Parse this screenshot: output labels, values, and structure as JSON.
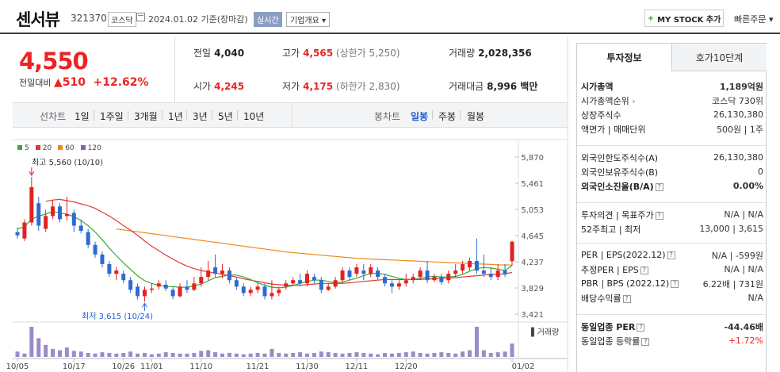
{
  "header": {
    "name": "센서뷰",
    "code": "321370",
    "market": "코스닥",
    "date": "2024.01.02 기준(장마감)",
    "realtime": "실시간",
    "corp_info": "기업개요",
    "mystock": "MY STOCK 추가",
    "quick_order": "빠른주문"
  },
  "summary": {
    "price": "4,550",
    "change_label": "전일대비",
    "change_value": "510",
    "change_pct": "+12.62%",
    "prev_label": "전일",
    "prev": "4,040",
    "open_label": "시가",
    "open": "4,245",
    "high_label": "고가",
    "high": "4,565",
    "upper_limit": "(상한가 5,250)",
    "low_label": "저가",
    "low": "4,175",
    "lower_limit": "(하한가 2,830)",
    "volume_label": "거래량",
    "volume": "2,028,356",
    "amount_label": "거래대금",
    "amount": "8,996 백만"
  },
  "period_tabs": {
    "line_label": "선차트",
    "line_items": [
      "1일",
      "1주일",
      "3개월",
      "1년",
      "3년",
      "5년",
      "10년"
    ],
    "candle_label": "봉차트",
    "candle_items": [
      "일봉",
      "주봉",
      "월봉"
    ],
    "selected": "일봉"
  },
  "chart_data": {
    "type": "candlestick",
    "legend": [
      "5",
      "20",
      "60",
      "120"
    ],
    "colors": {
      "ma5": "#3aaa35",
      "ma20": "#e03a3a",
      "ma60": "#ee8a1f",
      "ma120": "#8e5bc2",
      "up": "#e22222",
      "down": "#2d6bd1",
      "volume": "#9a8bc9"
    },
    "y_ticks": [
      "5,870",
      "5,461",
      "5,053",
      "4,645",
      "4,237",
      "3,829",
      "3,421"
    ],
    "ylim": [
      3421,
      5870
    ],
    "x_ticks": [
      "10/05",
      "10/17",
      "10/26",
      "11/01",
      "11/10",
      "11/21",
      "11/30",
      "12/11",
      "12/20",
      "01/02"
    ],
    "max_annotation": "최고 5,560 (10/10)",
    "min_annotation": "최저 3,615 (10/24)",
    "volume_label": "거래량",
    "candles": [
      [
        4700,
        4650,
        4770,
        4600
      ],
      [
        4600,
        4850,
        4900,
        4560
      ],
      [
        4850,
        5400,
        5560,
        4800
      ],
      [
        5150,
        4800,
        5250,
        4720
      ],
      [
        4750,
        4950,
        5050,
        4700
      ],
      [
        4950,
        5100,
        5200,
        4900
      ],
      [
        5100,
        4900,
        5150,
        4850
      ],
      [
        4950,
        4980,
        5250,
        4880
      ],
      [
        5000,
        4800,
        5050,
        4700
      ],
      [
        4800,
        4720,
        4900,
        4680
      ],
      [
        4700,
        4500,
        4750,
        4450
      ],
      [
        4500,
        4350,
        4550,
        4300
      ],
      [
        4350,
        4200,
        4400,
        4150
      ],
      [
        4200,
        4050,
        4250,
        4000
      ],
      [
        4050,
        4100,
        4150,
        3950
      ],
      [
        4050,
        3950,
        4100,
        3900
      ],
      [
        3950,
        3800,
        4000,
        3750
      ],
      [
        3850,
        3700,
        3900,
        3650
      ],
      [
        3700,
        3800,
        3850,
        3615
      ],
      [
        3800,
        3820,
        3900,
        3750
      ],
      [
        3850,
        3900,
        3950,
        3800
      ],
      [
        3880,
        3820,
        3950,
        3780
      ],
      [
        3800,
        3700,
        3850,
        3650
      ],
      [
        3700,
        3850,
        3900,
        3680
      ],
      [
        3850,
        3800,
        3950,
        3750
      ],
      [
        3800,
        3900,
        4000,
        3780
      ],
      [
        3900,
        4000,
        4150,
        3850
      ],
      [
        4000,
        4100,
        4250,
        3950
      ],
      [
        4150,
        4050,
        4350,
        4000
      ],
      [
        4050,
        4100,
        4200,
        3980
      ],
      [
        4100,
        3950,
        4150,
        3900
      ],
      [
        3950,
        3850,
        4000,
        3800
      ],
      [
        3850,
        3750,
        3900,
        3700
      ],
      [
        3750,
        3800,
        3850,
        3700
      ],
      [
        3800,
        3850,
        3900,
        3750
      ],
      [
        3850,
        3700,
        3900,
        3650
      ],
      [
        3700,
        3750,
        3950,
        3650
      ],
      [
        3750,
        3800,
        3850,
        3700
      ],
      [
        3850,
        3900,
        3950,
        3800
      ],
      [
        3900,
        3950,
        4000,
        3850
      ],
      [
        3950,
        3900,
        4050,
        3850
      ],
      [
        3900,
        4050,
        4100,
        3850
      ],
      [
        4000,
        3950,
        4050,
        3900
      ],
      [
        3950,
        3800,
        4000,
        3750
      ],
      [
        3800,
        3850,
        3900,
        3780
      ],
      [
        3850,
        3950,
        4000,
        3820
      ],
      [
        3950,
        4100,
        4150,
        3900
      ],
      [
        4100,
        4000,
        4150,
        3950
      ],
      [
        4050,
        4150,
        4200,
        4000
      ],
      [
        4100,
        4050,
        4200,
        3950
      ],
      [
        4050,
        4150,
        4200,
        4000
      ],
      [
        4100,
        4000,
        4150,
        3950
      ],
      [
        4000,
        3900,
        4050,
        3850
      ],
      [
        3900,
        3850,
        3950,
        3750
      ],
      [
        3850,
        3900,
        3950,
        3800
      ],
      [
        3900,
        3950,
        4050,
        3850
      ],
      [
        3950,
        4000,
        4050,
        3900
      ],
      [
        4000,
        4100,
        4150,
        3950
      ],
      [
        4100,
        3950,
        4250,
        3900
      ],
      [
        3950,
        4000,
        4050,
        3920
      ],
      [
        4000,
        3920,
        4050,
        3880
      ],
      [
        3950,
        4050,
        4100,
        3900
      ],
      [
        4050,
        4100,
        4200,
        4000
      ],
      [
        4100,
        4200,
        4250,
        4050
      ],
      [
        4150,
        4250,
        4300,
        4100
      ],
      [
        4250,
        4100,
        4600,
        4050
      ],
      [
        4100,
        4050,
        4350,
        4000
      ],
      [
        4050,
        4000,
        4150,
        3950
      ],
      [
        4000,
        4100,
        4200,
        3950
      ],
      [
        4100,
        4040,
        4200,
        4000
      ],
      [
        4245,
        4550,
        4565,
        4175
      ]
    ],
    "volumes": [
      8,
      5,
      45,
      28,
      18,
      12,
      10,
      14,
      9,
      8,
      6,
      5,
      7,
      6,
      5,
      6,
      8,
      5,
      6,
      4,
      5,
      7,
      6,
      5,
      5,
      6,
      9,
      10,
      7,
      5,
      6,
      5,
      4,
      5,
      6,
      5,
      12,
      6,
      5,
      6,
      7,
      5,
      6,
      8,
      7,
      6,
      5,
      6,
      7,
      6,
      5,
      4,
      6,
      5,
      6,
      7,
      8,
      6,
      5,
      6,
      7,
      6,
      5,
      8,
      10,
      45,
      10,
      6,
      7,
      8,
      20
    ],
    "ma5": [
      4750,
      4780,
      4900,
      4950,
      4980,
      5020,
      5000,
      4980,
      4940,
      4880,
      4800,
      4700,
      4580,
      4450,
      4330,
      4220,
      4120,
      4020,
      3940,
      3900,
      3870,
      3850,
      3850,
      3840,
      3840,
      3860,
      3890,
      3940,
      3990,
      4010,
      4030,
      4030,
      4000,
      3960,
      3910,
      3870,
      3840,
      3830,
      3840,
      3870,
      3900,
      3930,
      3950,
      3950,
      3930,
      3910,
      3920,
      3950,
      3980,
      4020,
      4050,
      4060,
      4040,
      4010,
      3980,
      3960,
      3960,
      3980,
      4000,
      4010,
      4000,
      4000,
      4010,
      4040,
      4090,
      4130,
      4150,
      4140,
      4120,
      4100,
      4180
    ],
    "ma20": [
      null,
      null,
      null,
      null,
      5180,
      5200,
      5210,
      5190,
      5170,
      5140,
      5110,
      5070,
      5010,
      4950,
      4880,
      4800,
      4730,
      4650,
      4560,
      4480,
      4410,
      4340,
      4280,
      4220,
      4170,
      4130,
      4100,
      4080,
      4060,
      4040,
      4020,
      4000,
      3970,
      3950,
      3930,
      3910,
      3890,
      3880,
      3870,
      3870,
      3870,
      3880,
      3890,
      3900,
      3900,
      3900,
      3900,
      3910,
      3920,
      3930,
      3940,
      3950,
      3960,
      3960,
      3960,
      3960,
      3960,
      3960,
      3970,
      3970,
      3980,
      3980,
      3990,
      4000,
      4010,
      4020,
      4030,
      4040,
      4040,
      4050,
      4070
    ],
    "ma60": [
      null,
      null,
      null,
      null,
      null,
      null,
      null,
      null,
      null,
      null,
      null,
      null,
      null,
      null,
      4750,
      4735,
      4720,
      4705,
      4690,
      4675,
      4660,
      4645,
      4630,
      4615,
      4600,
      4585,
      4570,
      4555,
      4540,
      4525,
      4510,
      4495,
      4480,
      4465,
      4450,
      4435,
      4420,
      4405,
      4390,
      4380,
      4370,
      4360,
      4350,
      4340,
      4330,
      4320,
      4310,
      4300,
      4290,
      4285,
      4280,
      4275,
      4270,
      4265,
      4260,
      4255,
      4250,
      4245,
      4240,
      4235,
      4230,
      4225,
      4220,
      4215,
      4210,
      4205,
      4200,
      4195,
      4190,
      4188,
      4186
    ]
  },
  "investment": {
    "tab_active": "투자정보",
    "tab_other": "호가10단계",
    "rows1": [
      {
        "k": "시가총액",
        "v": "1,189억원"
      },
      {
        "k": "시가총액순위",
        "v": "코스닥 730위"
      },
      {
        "k": "상장주식수",
        "v": "26,130,380"
      },
      {
        "k": "액면가 | 매매단위",
        "v": "500원 | 1주"
      }
    ],
    "rows2": [
      {
        "k": "외국인한도주식수(A)",
        "v": "26,130,380"
      },
      {
        "k": "외국인보유주식수(B)",
        "v": "0"
      },
      {
        "k": "외국인소진율(B/A)",
        "v": "0.00%"
      }
    ],
    "rows3": [
      {
        "k": "투자의견 | 목표주가",
        "v": "N/A | N/A"
      },
      {
        "k": "52주최고 | 최저",
        "v": "13,000 | 3,615"
      }
    ],
    "rows4": [
      {
        "k": "PER | EPS(2022.12)",
        "v": "N/A | -599원"
      },
      {
        "k": "추정PER | EPS",
        "v": "N/A | N/A"
      },
      {
        "k": "PBR | BPS (2022.12)",
        "v": "6.22배 | 731원"
      },
      {
        "k": "배당수익률",
        "v": "N/A"
      }
    ],
    "rows5": [
      {
        "k": "동일업종 PER",
        "v": "-44.46배"
      },
      {
        "k": "동일업종 등락률",
        "v": "+1.72%"
      }
    ]
  }
}
